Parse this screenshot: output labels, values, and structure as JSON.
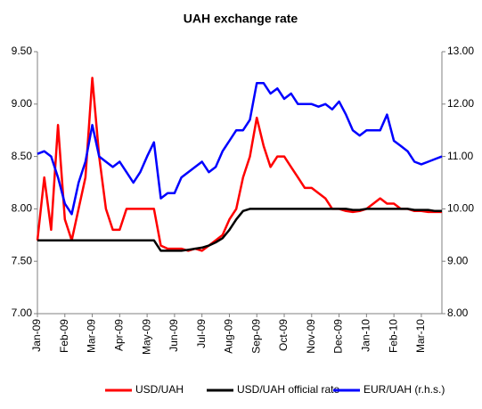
{
  "chart_data": {
    "type": "line",
    "title": "UAH exchange rate",
    "categories": [
      "Jan-09",
      null,
      null,
      null,
      "Feb-09",
      null,
      null,
      null,
      "Mar-09",
      null,
      null,
      null,
      "Apr-09",
      null,
      null,
      null,
      "May-09",
      null,
      null,
      null,
      "Jun-09",
      null,
      null,
      null,
      "Jul-09",
      null,
      null,
      null,
      "Aug-09",
      null,
      null,
      null,
      "Sep-09",
      null,
      null,
      null,
      "Oct-09",
      null,
      null,
      null,
      "Nov-09",
      null,
      null,
      null,
      "Dec-09",
      null,
      null,
      null,
      "Jan-10",
      null,
      null,
      null,
      "Feb-10",
      null,
      null,
      null,
      "Mar-10",
      null,
      null,
      null
    ],
    "series": [
      {
        "name": "USD/UAH",
        "color": "#ff0000",
        "values": [
          7.7,
          8.3,
          7.8,
          8.8,
          7.9,
          7.7,
          8.0,
          8.3,
          9.25,
          8.5,
          8.0,
          7.8,
          7.8,
          8.0,
          8.0,
          8.0,
          8.0,
          8.0,
          7.65,
          7.62,
          7.62,
          7.62,
          7.6,
          7.62,
          7.6,
          7.65,
          7.7,
          7.75,
          7.9,
          8.0,
          8.3,
          8.5,
          8.87,
          8.6,
          8.4,
          8.5,
          8.5,
          8.4,
          8.3,
          8.2,
          8.2,
          8.15,
          8.1,
          8.0,
          8.0,
          7.98,
          7.97,
          7.98,
          8.0,
          8.05,
          8.1,
          8.05,
          8.05,
          8.0,
          8.0,
          7.98,
          7.98,
          7.97,
          7.97,
          7.97
        ]
      },
      {
        "name": "USD/UAH official rate",
        "color": "#000000",
        "values": [
          7.7,
          7.7,
          7.7,
          7.7,
          7.7,
          7.7,
          7.7,
          7.7,
          7.7,
          7.7,
          7.7,
          7.7,
          7.7,
          7.7,
          7.7,
          7.7,
          7.7,
          7.7,
          7.6,
          7.6,
          7.6,
          7.6,
          7.61,
          7.62,
          7.63,
          7.65,
          7.68,
          7.72,
          7.8,
          7.9,
          7.98,
          8.0,
          8.0,
          8.0,
          8.0,
          8.0,
          8.0,
          8.0,
          8.0,
          8.0,
          8.0,
          8.0,
          8.0,
          8.0,
          8.0,
          8.0,
          7.99,
          7.99,
          8.0,
          8.0,
          8.0,
          8.0,
          8.0,
          8.0,
          8.0,
          7.99,
          7.99,
          7.99,
          7.98,
          7.98
        ]
      },
      {
        "name": "EUR/UAH (r.h.s.)",
        "color": "#0000ff",
        "axis": "y2",
        "values": [
          11.05,
          11.1,
          11.0,
          10.6,
          10.1,
          9.9,
          10.5,
          10.9,
          11.6,
          11.0,
          10.9,
          10.8,
          10.9,
          10.7,
          10.5,
          10.7,
          11.0,
          11.27,
          10.2,
          10.3,
          10.3,
          10.6,
          10.7,
          10.8,
          10.9,
          10.7,
          10.8,
          11.1,
          11.3,
          11.5,
          11.5,
          11.7,
          12.4,
          12.4,
          12.2,
          12.3,
          12.1,
          12.2,
          12.0,
          12.0,
          12.0,
          11.95,
          12.0,
          11.9,
          12.05,
          11.8,
          11.5,
          11.4,
          11.5,
          11.5,
          11.5,
          11.8,
          11.3,
          11.2,
          11.1,
          10.9,
          10.85,
          10.9,
          10.95,
          11.0
        ]
      }
    ],
    "ylim": [
      7.0,
      9.5
    ],
    "yticks": [
      {
        "value": 7.0,
        "label": "7.00"
      },
      {
        "value": 7.5,
        "label": "7.50"
      },
      {
        "value": 8.0,
        "label": "8.00"
      },
      {
        "value": 8.5,
        "label": "8.50"
      },
      {
        "value": 9.0,
        "label": "9.00"
      },
      {
        "value": 9.5,
        "label": "9.50"
      }
    ],
    "y2lim": [
      8.0,
      13.0
    ],
    "y2ticks": [
      {
        "value": 8.0,
        "label": "8.00"
      },
      {
        "value": 9.0,
        "label": "9.00"
      },
      {
        "value": 10.0,
        "label": "10.00"
      },
      {
        "value": 11.0,
        "label": "11.00"
      },
      {
        "value": 12.0,
        "label": "12.00"
      },
      {
        "value": 13.0,
        "label": "13.00"
      }
    ],
    "grid": false,
    "legend": "bottom"
  }
}
